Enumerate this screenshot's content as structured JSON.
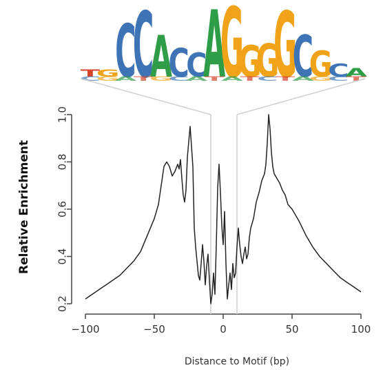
{
  "chart_data": {
    "type": "line",
    "xlabel": "Distance to Motif (bp)",
    "ylabel": "Relative Enrichment",
    "xlim": [
      -100,
      100
    ],
    "ylim": [
      0.2,
      1.0
    ],
    "x_ticks": [
      -100,
      -50,
      0,
      50,
      100
    ],
    "x_tick_labels": [
      "−100",
      "−50",
      "0",
      "50",
      "100"
    ],
    "y_ticks": [
      0.2,
      0.4,
      0.6,
      0.8,
      1.0
    ],
    "y_tick_labels": [
      "0.2",
      "0.4",
      "0.6",
      "0.8",
      "1.0"
    ],
    "motif_window": [
      -9,
      10
    ],
    "series": [
      {
        "color": "#222222",
        "points": [
          [
            -100,
            0.22
          ],
          [
            -95,
            0.24
          ],
          [
            -90,
            0.26
          ],
          [
            -85,
            0.28
          ],
          [
            -80,
            0.3
          ],
          [
            -75,
            0.32
          ],
          [
            -70,
            0.35
          ],
          [
            -65,
            0.38
          ],
          [
            -60,
            0.42
          ],
          [
            -55,
            0.49
          ],
          [
            -50,
            0.56
          ],
          [
            -47,
            0.62
          ],
          [
            -45,
            0.7
          ],
          [
            -43,
            0.78
          ],
          [
            -41,
            0.8
          ],
          [
            -39,
            0.78
          ],
          [
            -37,
            0.74
          ],
          [
            -35,
            0.76
          ],
          [
            -33,
            0.79
          ],
          [
            -32,
            0.77
          ],
          [
            -31,
            0.81
          ],
          [
            -30,
            0.73
          ],
          [
            -29,
            0.66
          ],
          [
            -28,
            0.63
          ],
          [
            -27,
            0.68
          ],
          [
            -26,
            0.82
          ],
          [
            -24,
            0.95
          ],
          [
            -22,
            0.78
          ],
          [
            -21,
            0.52
          ],
          [
            -20,
            0.44
          ],
          [
            -19,
            0.38
          ],
          [
            -18,
            0.32
          ],
          [
            -17,
            0.3
          ],
          [
            -16,
            0.37
          ],
          [
            -15,
            0.45
          ],
          [
            -14,
            0.38
          ],
          [
            -13,
            0.28
          ],
          [
            -12,
            0.36
          ],
          [
            -11,
            0.41
          ],
          [
            -10,
            0.3
          ],
          [
            -9,
            0.2
          ],
          [
            -8,
            0.24
          ],
          [
            -7,
            0.33
          ],
          [
            -6,
            0.24
          ],
          [
            -5,
            0.45
          ],
          [
            -4,
            0.69
          ],
          [
            -3,
            0.79
          ],
          [
            -2,
            0.67
          ],
          [
            -1,
            0.53
          ],
          [
            0,
            0.45
          ],
          [
            1,
            0.59
          ],
          [
            2,
            0.37
          ],
          [
            3,
            0.22
          ],
          [
            4,
            0.28
          ],
          [
            5,
            0.33
          ],
          [
            6,
            0.26
          ],
          [
            7,
            0.37
          ],
          [
            8,
            0.31
          ],
          [
            9,
            0.33
          ],
          [
            10,
            0.44
          ],
          [
            11,
            0.52
          ],
          [
            12,
            0.45
          ],
          [
            13,
            0.4
          ],
          [
            14,
            0.37
          ],
          [
            15,
            0.41
          ],
          [
            16,
            0.44
          ],
          [
            17,
            0.39
          ],
          [
            18,
            0.41
          ],
          [
            19,
            0.48
          ],
          [
            20,
            0.52
          ],
          [
            22,
            0.56
          ],
          [
            24,
            0.63
          ],
          [
            26,
            0.67
          ],
          [
            28,
            0.72
          ],
          [
            30,
            0.75
          ],
          [
            31,
            0.79
          ],
          [
            32,
            0.88
          ],
          [
            33,
            1.0
          ],
          [
            34,
            0.94
          ],
          [
            35,
            0.84
          ],
          [
            36,
            0.78
          ],
          [
            37,
            0.75
          ],
          [
            39,
            0.73
          ],
          [
            41,
            0.71
          ],
          [
            43,
            0.68
          ],
          [
            45,
            0.66
          ],
          [
            47,
            0.62
          ],
          [
            50,
            0.6
          ],
          [
            55,
            0.55
          ],
          [
            60,
            0.49
          ],
          [
            65,
            0.44
          ],
          [
            70,
            0.4
          ],
          [
            75,
            0.37
          ],
          [
            80,
            0.34
          ],
          [
            85,
            0.31
          ],
          [
            90,
            0.29
          ],
          [
            95,
            0.27
          ],
          [
            100,
            0.25
          ]
        ]
      }
    ],
    "motif_logo": {
      "letters": [
        {
          "char": "T",
          "color": "#d6442b",
          "height": 0.1
        },
        {
          "char": "G",
          "color": "#f0a318",
          "height": 0.1
        },
        {
          "char": "C",
          "color": "#3e74b6",
          "height": 0.74
        },
        {
          "char": "C",
          "color": "#3e74b6",
          "height": 0.92
        },
        {
          "char": "A",
          "color": "#2f9d48",
          "height": 0.58
        },
        {
          "char": "C",
          "color": "#3e74b6",
          "height": 0.4
        },
        {
          "char": "C",
          "color": "#3e74b6",
          "height": 0.33
        },
        {
          "char": "A",
          "color": "#2f9d48",
          "height": 0.94
        },
        {
          "char": "G",
          "color": "#f0a318",
          "height": 0.98
        },
        {
          "char": "G",
          "color": "#f0a318",
          "height": 0.44
        },
        {
          "char": "G",
          "color": "#f0a318",
          "height": 0.46
        },
        {
          "char": "G",
          "color": "#f0a318",
          "height": 0.92
        },
        {
          "char": "C",
          "color": "#3e74b6",
          "height": 0.58
        },
        {
          "char": "G",
          "color": "#f0a318",
          "height": 0.36
        },
        {
          "char": "C",
          "color": "#3e74b6",
          "height": 0.18
        },
        {
          "char": "A",
          "color": "#2f9d48",
          "height": 0.12
        }
      ]
    }
  }
}
